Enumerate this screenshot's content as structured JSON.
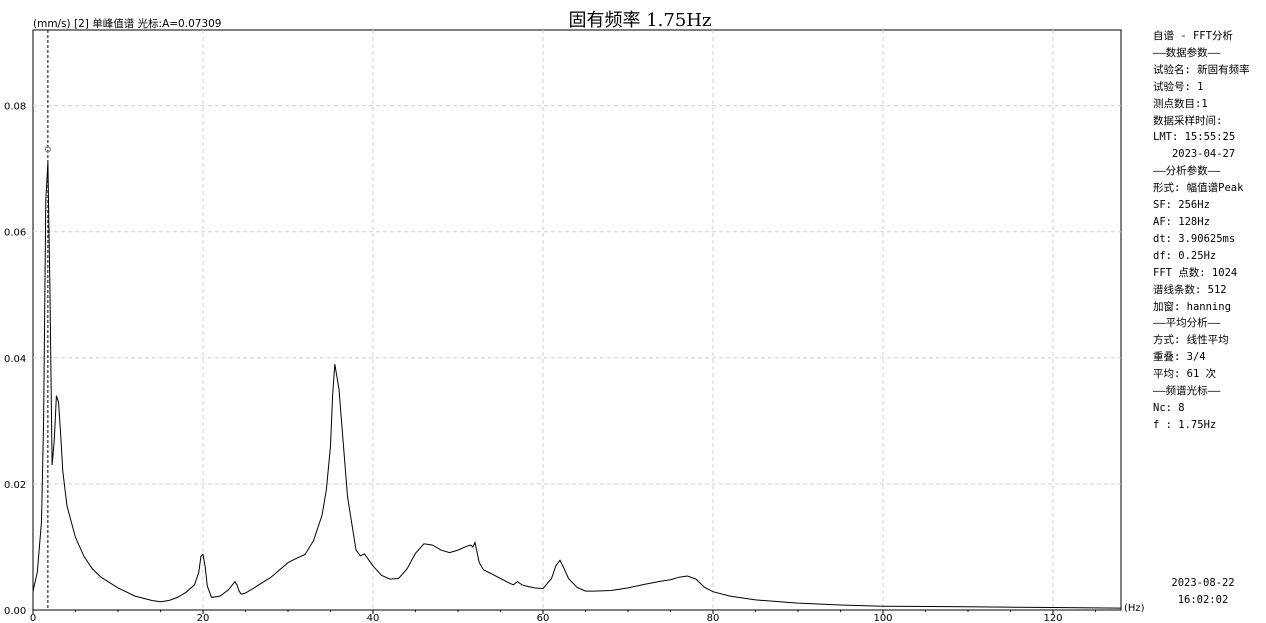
{
  "chart_data": {
    "type": "line",
    "title": "固有频率 1.75Hz",
    "header_left": "(mm/s) [2] 单峰值谱 光标:A=0.07309",
    "xlabel": "(Hz)",
    "xlim": [
      0,
      128
    ],
    "ylim": [
      0,
      0.092
    ],
    "xticks": [
      0,
      20,
      40,
      60,
      80,
      100,
      120
    ],
    "yticks": [
      0.0,
      0.02,
      0.04,
      0.06,
      0.08
    ],
    "ytick_labels": [
      "0.00",
      "0.02",
      "0.04",
      "0.06",
      "0.08"
    ],
    "grid": true,
    "cursor": {
      "x": 1.75,
      "y": 0.07309
    },
    "series": [
      {
        "color": "#000000",
        "x": [
          0,
          0.5,
          1,
          1.25,
          1.5,
          1.75,
          2,
          2.25,
          2.5,
          2.75,
          3,
          3.25,
          3.5,
          4,
          5,
          6,
          7,
          8,
          10,
          12,
          14,
          15,
          16,
          17,
          18,
          19,
          19.5,
          19.75,
          20,
          20.25,
          20.5,
          21,
          22,
          23,
          23.75,
          24,
          24.25,
          24.5,
          25,
          26,
          28,
          30,
          31,
          32,
          33,
          34,
          34.5,
          35,
          35.25,
          35.5,
          36,
          37,
          38,
          38.5,
          39,
          40,
          41,
          42,
          43,
          44,
          45,
          46,
          47,
          48,
          49,
          50,
          51,
          51.5,
          51.75,
          52,
          52.5,
          53,
          54,
          55,
          56,
          56.5,
          57,
          57.5,
          58,
          59,
          60,
          61,
          61.5,
          62,
          62.5,
          63,
          64,
          65,
          66,
          68,
          70,
          72,
          74,
          75,
          76,
          77,
          78,
          79,
          80,
          82,
          85,
          90,
          95,
          100,
          110,
          120,
          128
        ],
        "y": [
          0.003,
          0.006,
          0.014,
          0.03,
          0.065,
          0.071,
          0.05,
          0.023,
          0.027,
          0.034,
          0.033,
          0.028,
          0.022,
          0.0165,
          0.0115,
          0.0085,
          0.0065,
          0.0052,
          0.0035,
          0.0022,
          0.0015,
          0.0013,
          0.0015,
          0.002,
          0.0028,
          0.004,
          0.006,
          0.0085,
          0.0088,
          0.007,
          0.0038,
          0.002,
          0.0022,
          0.0032,
          0.0045,
          0.004,
          0.003,
          0.0025,
          0.0027,
          0.0035,
          0.0052,
          0.0075,
          0.0082,
          0.0088,
          0.011,
          0.015,
          0.019,
          0.026,
          0.034,
          0.039,
          0.035,
          0.018,
          0.0095,
          0.0086,
          0.0089,
          0.007,
          0.0055,
          0.0049,
          0.005,
          0.0065,
          0.009,
          0.0105,
          0.0103,
          0.0095,
          0.0091,
          0.0095,
          0.0101,
          0.0103,
          0.01,
          0.0107,
          0.0075,
          0.0064,
          0.0057,
          0.005,
          0.0043,
          0.004,
          0.0045,
          0.004,
          0.0038,
          0.0035,
          0.0034,
          0.005,
          0.007,
          0.0079,
          0.0065,
          0.005,
          0.0036,
          0.003,
          0.003,
          0.0031,
          0.0035,
          0.0041,
          0.0046,
          0.0048,
          0.0052,
          0.0054,
          0.0049,
          0.0036,
          0.0029,
          0.0022,
          0.0016,
          0.0011,
          0.0008,
          0.0006,
          0.0005,
          0.0004,
          0.0003
        ]
      }
    ]
  },
  "info_panel": {
    "lines": [
      "自谱 - FFT分析",
      "——数据参数——",
      "试验名: 新固有频率",
      "试验号: 1",
      "测点数目:1",
      "数据采样时间:",
      "LMT: 15:55:25",
      "   2023-04-27",
      "——分析参数——",
      "形式: 幅值谱Peak",
      "SF: 256Hz",
      "AF: 128Hz",
      "dt: 3.90625ms",
      "df: 0.25Hz",
      "FFT 点数: 1024",
      "谱线条数: 512",
      "加窗: hanning",
      "——平均分析——",
      "方式: 线性平均",
      "重叠: 3/4",
      "平均: 61 次",
      "——频谱光标——",
      "Nc: 8",
      "f : 1.75Hz"
    ],
    "date": "2023-08-22",
    "time": "16:02:02"
  }
}
